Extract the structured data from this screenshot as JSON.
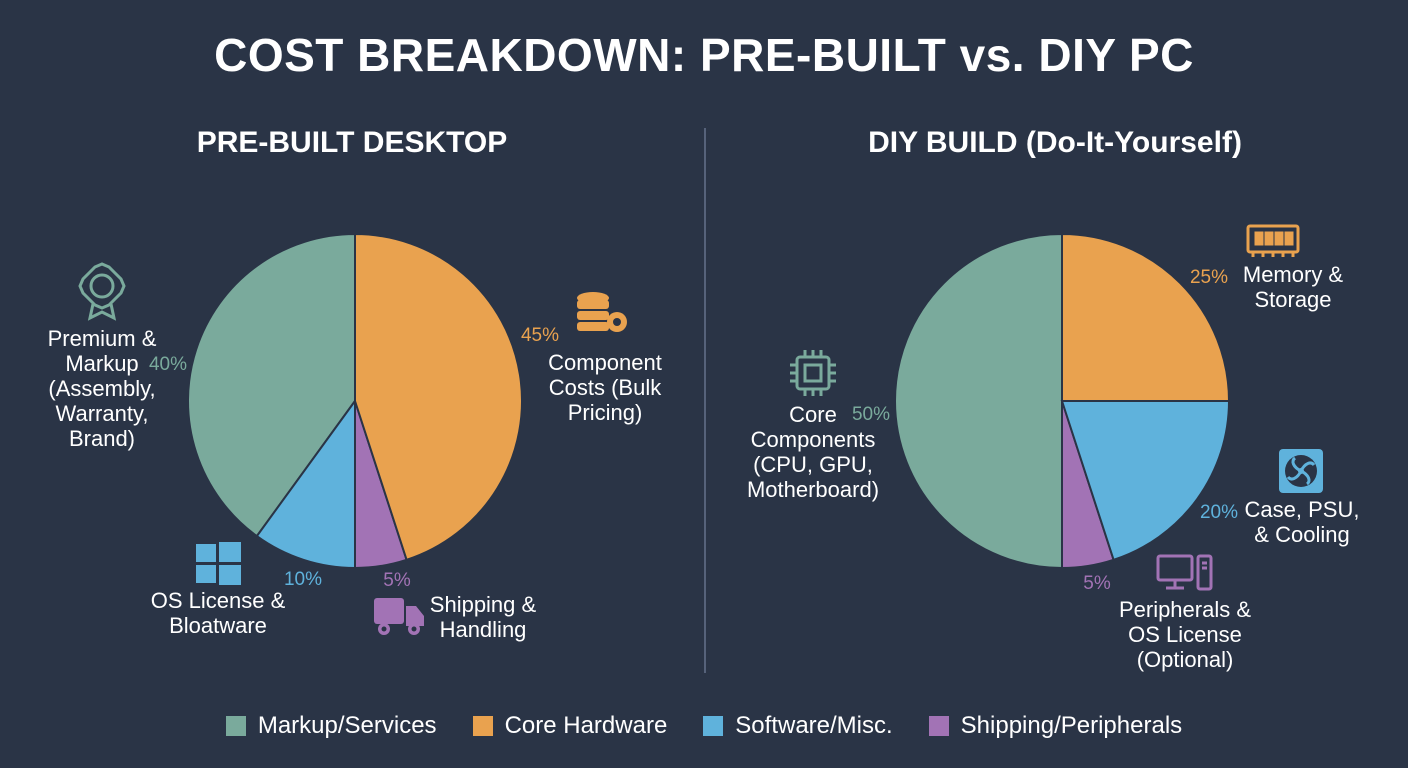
{
  "title": "COST BREAKDOWN: PRE-BUILT vs. DIY PC",
  "colors": {
    "markup": "#7aaa9c",
    "hardware": "#e9a24f",
    "software": "#5fb2dc",
    "shipping": "#a273b5",
    "background": "#2a3446"
  },
  "legend": [
    {
      "label": "Markup/Services",
      "color": "#7aaa9c"
    },
    {
      "label": "Core Hardware",
      "color": "#e9a24f"
    },
    {
      "label": "Software/Misc.",
      "color": "#5fb2dc"
    },
    {
      "label": "Shipping/Peripherals",
      "color": "#a273b5"
    }
  ],
  "chart_data": [
    {
      "type": "pie",
      "title": "PRE-BUILT DESKTOP",
      "slices": [
        {
          "label": "Component Costs (Bulk Pricing)",
          "lines": [
            "Component",
            "Costs (Bulk",
            "Pricing)"
          ],
          "value": 45,
          "pct_label": "45%",
          "color": "#e9a24f",
          "icon": "database-gear-icon"
        },
        {
          "label": "Shipping & Handling",
          "lines": [
            "Shipping &",
            "Handling"
          ],
          "value": 5,
          "pct_label": "5%",
          "color": "#a273b5",
          "icon": "truck-icon"
        },
        {
          "label": "OS License & Bloatware",
          "lines": [
            "OS License &",
            "Bloatware"
          ],
          "value": 10,
          "pct_label": "10%",
          "color": "#5fb2dc",
          "icon": "windows-icon"
        },
        {
          "label": "Premium & Markup (Assembly, Warranty, Brand)",
          "lines": [
            "Premium &",
            "Markup",
            "(Assembly,",
            "Warranty,",
            "Brand)"
          ],
          "value": 40,
          "pct_label": "40%",
          "color": "#7aaa9c",
          "icon": "award-badge-icon"
        }
      ]
    },
    {
      "type": "pie",
      "title": "DIY BUILD (Do-It-Yourself)",
      "slices": [
        {
          "label": "Memory & Storage",
          "lines": [
            "Memory &",
            "Storage"
          ],
          "value": 25,
          "pct_label": "25%",
          "color": "#e9a24f",
          "icon": "ram-stick-icon"
        },
        {
          "label": "Case, PSU, & Cooling",
          "lines": [
            "Case, PSU,",
            "& Cooling"
          ],
          "value": 20,
          "pct_label": "20%",
          "color": "#5fb2dc",
          "icon": "fan-icon"
        },
        {
          "label": "Peripherals & OS License (Optional)",
          "lines": [
            "Peripherals &",
            "OS License",
            "(Optional)"
          ],
          "value": 5,
          "pct_label": "5%",
          "color": "#a273b5",
          "icon": "desktop-computer-icon"
        },
        {
          "label": "Core Components (CPU, GPU, Motherboard)",
          "lines": [
            "Core",
            "Components",
            "(CPU, GPU,",
            "Motherboard)"
          ],
          "value": 50,
          "pct_label": "50%",
          "color": "#7aaa9c",
          "icon": "cpu-chip-icon"
        }
      ]
    }
  ]
}
